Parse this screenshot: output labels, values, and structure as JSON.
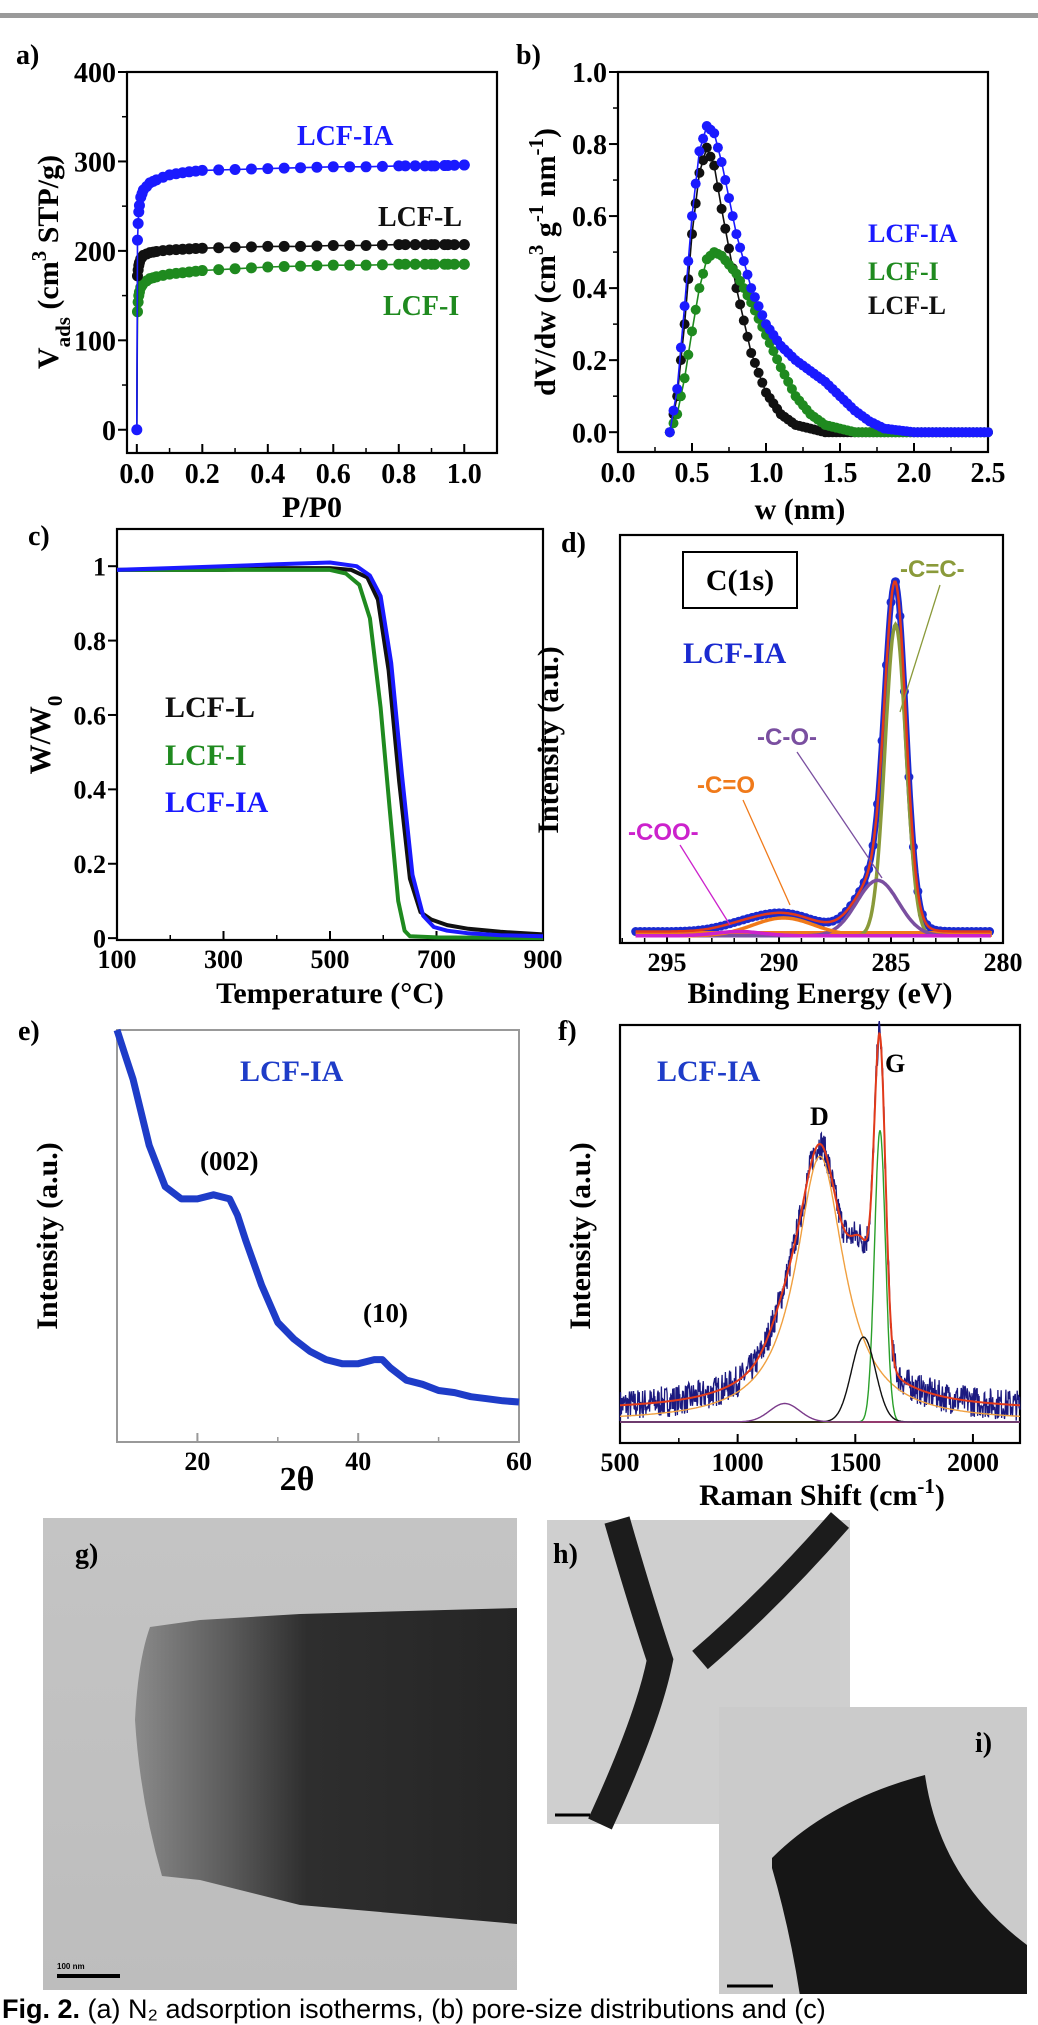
{
  "figure": {
    "caption_label": "Fig. 2.",
    "caption_text": " (a) N₂ adsorption isotherms, (b) pore-size distributions and (c)"
  },
  "chart_data": [
    {
      "panel": "a)",
      "type": "scatter",
      "xlabel": "P/P0",
      "ylabel_parts": [
        {
          "t": "V",
          "s": ""
        },
        {
          "t": "ads",
          "s": "sub"
        },
        {
          "t": " (cm",
          "s": ""
        },
        {
          "t": "3",
          "s": "sup"
        },
        {
          "t": " STP/g)",
          "s": ""
        }
      ],
      "xticks": [
        "0.0",
        "0.2",
        "0.4",
        "0.6",
        "0.8",
        "1.0"
      ],
      "yticks": [
        "0",
        "100",
        "200",
        "300",
        "400"
      ],
      "xlim": [
        -0.03,
        1.1
      ],
      "ylim": [
        -26,
        400
      ],
      "series": [
        {
          "name": "LCF-IA",
          "color": "#1a1aff",
          "x": [
            0,
            0.002,
            0.005,
            0.01,
            0.02,
            0.04,
            0.07,
            0.1,
            0.15,
            0.2,
            0.3,
            0.4,
            0.5,
            0.6,
            0.7,
            0.8,
            0.9,
            1.0
          ],
          "y": [
            0,
            212,
            240,
            258,
            268,
            276,
            281,
            285,
            288,
            290,
            291,
            292,
            293,
            294,
            294,
            295,
            295,
            296
          ]
        },
        {
          "name": "LCF-L",
          "color": "#111111",
          "x": [
            0,
            0.002,
            0.005,
            0.01,
            0.02,
            0.04,
            0.07,
            0.1,
            0.15,
            0.2,
            0.3,
            0.4,
            0.5,
            0.6,
            0.7,
            0.8,
            0.9,
            1.0
          ],
          "y": [
            0,
            172,
            182,
            190,
            195,
            198,
            200,
            201,
            202,
            203,
            204,
            205,
            205,
            206,
            206,
            207,
            207,
            207
          ]
        },
        {
          "name": "LCF-I",
          "color": "#1f8a1f",
          "x": [
            0,
            0.002,
            0.005,
            0.01,
            0.02,
            0.04,
            0.07,
            0.1,
            0.15,
            0.2,
            0.3,
            0.4,
            0.5,
            0.6,
            0.7,
            0.8,
            0.9,
            1.0
          ],
          "y": [
            0,
            132,
            148,
            158,
            164,
            169,
            172,
            174,
            176,
            178,
            180,
            182,
            183,
            184,
            184,
            185,
            185,
            185
          ]
        }
      ]
    },
    {
      "panel": "b)",
      "type": "scatter",
      "xlabel": "w (nm)",
      "ylabel_parts": [
        {
          "t": "dV/dw (cm",
          "s": ""
        },
        {
          "t": "3",
          "s": "sup"
        },
        {
          "t": " g",
          "s": ""
        },
        {
          "t": "-1",
          "s": "sup"
        },
        {
          "t": " nm",
          "s": ""
        },
        {
          "t": "-1",
          "s": "sup"
        },
        {
          "t": ")",
          "s": ""
        }
      ],
      "xticks": [
        "0.0",
        "0.5",
        "1.0",
        "1.5",
        "2.0",
        "2.5"
      ],
      "yticks": [
        "0.0",
        "0.2",
        "0.4",
        "0.6",
        "0.8",
        "1.0"
      ],
      "xlim": [
        0,
        2.5
      ],
      "ylim": [
        -0.055,
        1.0
      ],
      "series": [
        {
          "name": "LCF-IA",
          "color": "#1a1aff",
          "x": [
            0.35,
            0.4,
            0.45,
            0.5,
            0.55,
            0.6,
            0.65,
            0.7,
            0.8,
            0.9,
            1.0,
            1.1,
            1.2,
            1.3,
            1.4,
            1.5,
            1.6,
            1.7,
            1.8,
            1.9,
            2.0,
            2.2,
            2.5
          ],
          "y": [
            0,
            0.12,
            0.35,
            0.6,
            0.78,
            0.85,
            0.83,
            0.75,
            0.55,
            0.4,
            0.3,
            0.24,
            0.2,
            0.17,
            0.14,
            0.1,
            0.06,
            0.03,
            0.01,
            0.005,
            0,
            0,
            0
          ]
        },
        {
          "name": "LCF-I",
          "color": "#1f8a1f",
          "x": [
            0.35,
            0.4,
            0.45,
            0.5,
            0.55,
            0.6,
            0.65,
            0.7,
            0.8,
            0.9,
            1.0,
            1.1,
            1.2,
            1.3,
            1.4,
            1.5,
            1.6,
            1.7,
            1.8,
            1.9,
            2.0,
            2.2,
            2.5
          ],
          "y": [
            0,
            0.05,
            0.15,
            0.28,
            0.4,
            0.48,
            0.5,
            0.49,
            0.44,
            0.36,
            0.27,
            0.18,
            0.1,
            0.05,
            0.02,
            0.01,
            0,
            0,
            0,
            0,
            0,
            0,
            0
          ]
        },
        {
          "name": "LCF-L",
          "color": "#111111",
          "x": [
            0.35,
            0.4,
            0.45,
            0.5,
            0.55,
            0.6,
            0.65,
            0.7,
            0.8,
            0.9,
            1.0,
            1.1,
            1.2,
            1.3,
            1.4,
            1.5,
            1.6,
            1.7,
            1.8,
            1.9,
            2.0,
            2.2,
            2.5
          ],
          "y": [
            0,
            0.1,
            0.3,
            0.55,
            0.72,
            0.79,
            0.74,
            0.62,
            0.4,
            0.22,
            0.11,
            0.05,
            0.02,
            0.01,
            0,
            0,
            0,
            0,
            0,
            0,
            0,
            0,
            0
          ]
        }
      ]
    },
    {
      "panel": "c)",
      "type": "line",
      "xlabel": "Temperature (°C)",
      "ylabel_parts": [
        {
          "t": "W/W",
          "s": ""
        },
        {
          "t": "0",
          "s": "sub"
        }
      ],
      "xticks": [
        "100",
        "300",
        "500",
        "700",
        "900"
      ],
      "yticks": [
        "0",
        "0.2",
        "0.4",
        "0.6",
        "0.8",
        "1"
      ],
      "xlim": [
        100,
        900
      ],
      "ylim": [
        -0.005,
        1.1
      ],
      "series": [
        {
          "name": "LCF-L",
          "color": "#111111",
          "x": [
            100,
            200,
            300,
            400,
            500,
            540,
            570,
            590,
            610,
            630,
            650,
            670,
            690,
            720,
            760,
            820,
            900
          ],
          "y": [
            0.99,
            0.99,
            0.99,
            0.995,
            0.995,
            0.99,
            0.97,
            0.91,
            0.72,
            0.42,
            0.16,
            0.07,
            0.05,
            0.035,
            0.025,
            0.017,
            0.01
          ]
        },
        {
          "name": "LCF-I",
          "color": "#1f8a1f",
          "x": [
            100,
            200,
            300,
            400,
            500,
            530,
            555,
            575,
            595,
            612,
            628,
            640,
            650,
            700,
            800,
            900
          ],
          "y": [
            0.99,
            0.99,
            0.99,
            0.99,
            0.99,
            0.98,
            0.95,
            0.86,
            0.62,
            0.35,
            0.1,
            0.02,
            0.005,
            0.002,
            0.001,
            0.0
          ]
        },
        {
          "name": "LCF-IA",
          "color": "#1a1aff",
          "x": [
            100,
            200,
            300,
            400,
            500,
            550,
            575,
            595,
            615,
            635,
            655,
            675,
            695,
            720,
            760,
            820,
            900
          ],
          "y": [
            0.99,
            0.995,
            1.0,
            1.005,
            1.01,
            1.0,
            0.975,
            0.92,
            0.74,
            0.44,
            0.17,
            0.06,
            0.03,
            0.02,
            0.013,
            0.008,
            0.005
          ]
        }
      ]
    },
    {
      "panel": "d)",
      "type": "line",
      "xlabel": "Binding Energy (eV)",
      "ylabel_parts": [
        {
          "t": "Intensity (a.u.)",
          "s": ""
        }
      ],
      "xticks": [
        "295",
        "290",
        "285",
        "280"
      ],
      "yticks": [],
      "xlim": [
        297.1,
        280
      ],
      "ylim": [
        -0.02,
        1.12
      ],
      "box_label": "C(1s)",
      "sample_label": "LCF-IA",
      "data_color": "#1a2ad0",
      "envelope_color": "#e23a1a",
      "series": [
        {
          "name": "-C=C-",
          "color": "#8a9a3a",
          "peak": 284.8,
          "height": 0.87,
          "fwhm": 1.1
        },
        {
          "name": "-C-O-",
          "color": "#7a4fa0",
          "peak": 285.6,
          "height": 0.155,
          "fwhm": 2.2
        },
        {
          "name": "-C=O",
          "color": "#f07a1a",
          "peak": 289.8,
          "height": 0.05,
          "fwhm": 3.2
        },
        {
          "name": "-COO-",
          "color": "#cc22cc",
          "peak": 291.8,
          "height": 0.012,
          "fwhm": 2.5
        }
      ]
    },
    {
      "panel": "e)",
      "type": "line",
      "xlabel": "2θ",
      "ylabel_parts": [
        {
          "t": "Intensity (a.u.)",
          "s": ""
        }
      ],
      "xticks": [
        "20",
        "40",
        "60"
      ],
      "yticks": [],
      "xlim": [
        10,
        60
      ],
      "ylim": [
        0,
        1
      ],
      "sample_label": "LCF-IA",
      "annotations": [
        "(002)",
        "(10)"
      ],
      "series": [
        {
          "color": "#1e3cc8",
          "x": [
            10,
            11,
            12,
            14,
            16,
            18,
            20,
            22,
            24,
            25,
            26,
            28,
            30,
            32,
            34,
            36,
            38,
            40,
            42,
            43,
            44,
            46,
            48,
            50,
            52,
            54,
            56,
            58,
            60
          ],
          "y": [
            1.0,
            0.94,
            0.88,
            0.72,
            0.62,
            0.59,
            0.59,
            0.6,
            0.59,
            0.55,
            0.49,
            0.38,
            0.29,
            0.25,
            0.22,
            0.2,
            0.19,
            0.19,
            0.2,
            0.2,
            0.18,
            0.15,
            0.14,
            0.125,
            0.12,
            0.11,
            0.105,
            0.1,
            0.097
          ]
        }
      ]
    },
    {
      "panel": "f)",
      "type": "line",
      "xlabel_parts": [
        {
          "t": "Raman Shift (cm",
          "s": ""
        },
        {
          "t": "-1",
          "s": "sup"
        },
        {
          "t": ")",
          "s": ""
        }
      ],
      "ylabel_parts": [
        {
          "t": "Intensity (a.u.)",
          "s": ""
        }
      ],
      "xticks": [
        "500",
        "1000",
        "1500",
        "2000"
      ],
      "yticks": [],
      "xlim": [
        500,
        2200
      ],
      "ylim": [
        -0.057,
        1.076
      ],
      "sample_label": "LCF-IA",
      "data_color": "#1c1a80",
      "envelope_color": "#e23a1a",
      "series": [
        {
          "name": "D",
          "color": "#f0a040",
          "peak": 1350,
          "height": 0.72,
          "fwhm": 250,
          "profile": "lorentzian"
        },
        {
          "name": "G",
          "color": "#2aa02a",
          "peak": 1605,
          "height": 0.79,
          "fwhm": 55,
          "profile": "gaussian"
        },
        {
          "color": "#111111",
          "peak": 1535,
          "height": 0.23,
          "fwhm": 120,
          "profile": "gaussian"
        },
        {
          "color": "#7a3a8a",
          "peak": 1200,
          "height": 0.05,
          "fwhm": 150,
          "profile": "gaussian"
        }
      ]
    }
  ],
  "micrographs": [
    {
      "panel": "g)",
      "scale_bar": "100 nm"
    },
    {
      "panel": "h)"
    },
    {
      "panel": "i)"
    }
  ]
}
